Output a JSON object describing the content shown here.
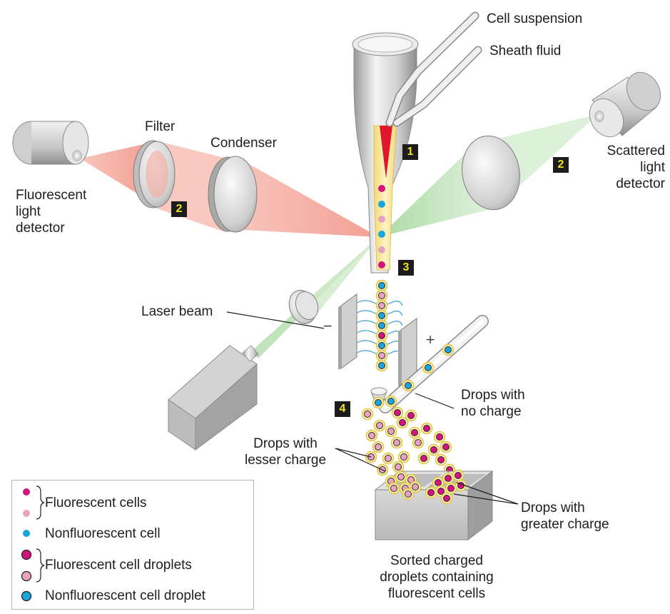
{
  "labels": {
    "cell_suspension": "Cell suspension",
    "sheath_fluid": "Sheath fluid",
    "filter": "Filter",
    "condenser": "Condenser",
    "scattered_detector": [
      "Scattered",
      "light",
      "detector"
    ],
    "fluorescent_detector": [
      "Fluorescent",
      "light",
      "detector"
    ],
    "laser_beam": "Laser beam",
    "drops_no_charge": [
      "Drops with",
      "no charge"
    ],
    "drops_lesser_charge": [
      "Drops with",
      "lesser charge"
    ],
    "drops_greater_charge": [
      "Drops with",
      "greater charge"
    ],
    "sorted_caption": [
      "Sorted charged",
      "droplets containing",
      "fluorescent cells"
    ]
  },
  "steps": {
    "s1": "1",
    "s2_scatter": "2",
    "s2_fluor": "2",
    "s3": "3",
    "s4": "4"
  },
  "plate_signs": {
    "left": "−",
    "right": "+"
  },
  "legend": {
    "fluorescent_cells": "Fluorescent cells",
    "nonfluorescent_cell": "Nonfluorescent cell",
    "fluorescent_droplets": "Fluorescent cell droplets",
    "nonfluorescent_droplet": "Nonfluorescent cell droplet"
  },
  "colors": {
    "magenta_cell": "#d4147c",
    "pink_cell": "#e9a3bf",
    "cyan_cell": "#1aa6d8",
    "droplet_fill": "#f7efc0",
    "droplet_ring": "#e6c63d",
    "laser_green": "#b9e0b4",
    "fluor_red": "#f2a395",
    "step_badge": "#1c1c1c",
    "step_text": "#f2e21a"
  }
}
